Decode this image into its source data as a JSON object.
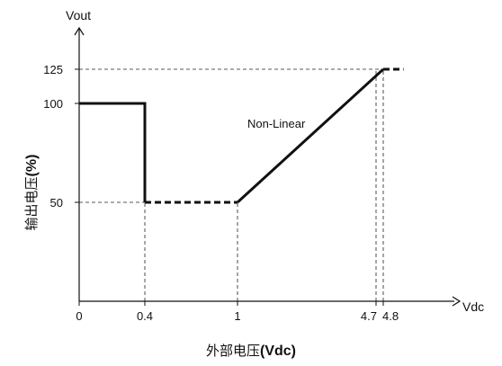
{
  "chart_data": {
    "type": "line",
    "xlabel": "外部电压(Vdc)",
    "xlabel_parts": {
      "cjk": "外部电压",
      "bold": "(Vdc)"
    },
    "ylabel": "输出电压(%)",
    "ylabel_parts": {
      "cjk": "输出电压",
      "bold": "(%)"
    },
    "x_axis_name": "Vdc",
    "y_axis_name": "Vout",
    "x_ticks": [
      "0",
      "0.4",
      "1",
      "4.7",
      "4.8"
    ],
    "x_tick_values": [
      0,
      0.4,
      1,
      4.7,
      4.8
    ],
    "y_ticks": [
      "50",
      "100",
      "125"
    ],
    "y_tick_values": [
      50,
      100,
      125
    ],
    "xlim": [
      0,
      5.5
    ],
    "ylim": [
      0,
      140
    ],
    "annotation": "Non-Linear",
    "series": [
      {
        "style": "solid",
        "points": [
          [
            0,
            100
          ],
          [
            0.4,
            100
          ],
          [
            0.4,
            50
          ]
        ]
      },
      {
        "style": "dashed",
        "points": [
          [
            0.4,
            50
          ],
          [
            1,
            50
          ]
        ]
      },
      {
        "style": "solid",
        "points": [
          [
            1,
            50
          ],
          [
            4.8,
            125
          ]
        ]
      },
      {
        "style": "dashed",
        "points": [
          [
            4.8,
            125
          ],
          [
            5.0,
            125
          ]
        ]
      }
    ],
    "reference_lines": [
      {
        "from": [
          0,
          125
        ],
        "to": [
          4.8,
          125
        ]
      },
      {
        "from": [
          0,
          50
        ],
        "to": [
          0.4,
          50
        ]
      },
      {
        "from": [
          0.4,
          0
        ],
        "to": [
          0.4,
          50
        ]
      },
      {
        "from": [
          1,
          0
        ],
        "to": [
          1,
          50
        ]
      },
      {
        "from": [
          4.7,
          0
        ],
        "to": [
          4.7,
          125
        ]
      },
      {
        "from": [
          4.8,
          0
        ],
        "to": [
          4.8,
          125
        ]
      }
    ],
    "grid": false
  }
}
